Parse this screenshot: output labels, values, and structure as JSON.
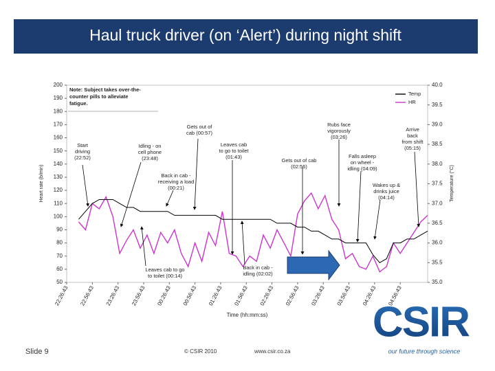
{
  "slide": {
    "title": "Haul truck driver (on ‘Alert’) during night shift",
    "slide_number": "Slide 9",
    "copyright": "© CSIR 2010",
    "website": "www.csir.co.za",
    "logo": "CSIR",
    "tagline": "our future through science"
  },
  "chart_data": {
    "type": "line",
    "x_label": "Time (hh:mm:ss)",
    "y_label": "Heart rate (b/min)",
    "y2_label": "Temperature (°C)",
    "note": [
      "Note: Subject takes over-the-",
      "counter pills to alleviate",
      "fatigue."
    ],
    "x": [
      14,
      22,
      30,
      38,
      46,
      54,
      62,
      70,
      78,
      86,
      94,
      102,
      110,
      118,
      126,
      134,
      142,
      150,
      158,
      166,
      174,
      182,
      190,
      198,
      206,
      214,
      222,
      230,
      238,
      246,
      254,
      262,
      270,
      278,
      286,
      294,
      302,
      310,
      318,
      326,
      334,
      342,
      350,
      358,
      366,
      374,
      382,
      390,
      398,
      406,
      414,
      422
    ],
    "xlim": [
      0,
      422
    ],
    "xticks": [
      {
        "value": 0,
        "label": "22:26:43"
      },
      {
        "value": 30,
        "label": "22:56:43"
      },
      {
        "value": 60,
        "label": "23:26:43"
      },
      {
        "value": 90,
        "label": "23:56:43"
      },
      {
        "value": 120,
        "label": "00:26:43"
      },
      {
        "value": 150,
        "label": "00:56:43"
      },
      {
        "value": 180,
        "label": "01:26:43"
      },
      {
        "value": 210,
        "label": "01:56:43"
      },
      {
        "value": 240,
        "label": "02:26:43"
      },
      {
        "value": 270,
        "label": "02:56:43"
      },
      {
        "value": 300,
        "label": "03:26:43"
      },
      {
        "value": 330,
        "label": "03:56:43"
      },
      {
        "value": 360,
        "label": "04:26:43"
      },
      {
        "value": 390,
        "label": "04:56:43"
      }
    ],
    "ylim": [
      50,
      200
    ],
    "yticks": [
      50,
      60,
      70,
      80,
      90,
      100,
      110,
      120,
      130,
      140,
      150,
      160,
      170,
      180,
      190,
      200
    ],
    "y2lim": [
      35,
      40
    ],
    "y2ticks": [
      {
        "value": 35,
        "label": "35.0"
      },
      35.5,
      {
        "value": 36,
        "label": "36.0"
      },
      36.5,
      {
        "value": 37,
        "label": "37.0"
      },
      37.5,
      {
        "value": 38,
        "label": "38.0"
      },
      38.5,
      {
        "value": 39,
        "label": "39.0"
      },
      39.5,
      {
        "value": 40,
        "label": "40.0"
      }
    ],
    "legend": "upper right",
    "series": [
      {
        "name": "Temp",
        "color": "#000000",
        "axis": "y2",
        "values": [
          36.6,
          36.8,
          37.0,
          37.1,
          37.1,
          37.1,
          37.0,
          36.9,
          36.9,
          36.8,
          36.8,
          36.8,
          36.8,
          36.8,
          36.7,
          36.7,
          36.7,
          36.7,
          36.7,
          36.7,
          36.7,
          36.6,
          36.6,
          36.6,
          36.6,
          36.6,
          36.6,
          36.6,
          36.6,
          36.5,
          36.5,
          36.5,
          36.4,
          36.4,
          36.3,
          36.3,
          36.2,
          36.1,
          36.1,
          36.0,
          36.0,
          36.0,
          36.0,
          35.7,
          35.5,
          35.6,
          36.0,
          36.0,
          36.1,
          36.1,
          36.2,
          36.3
        ]
      },
      {
        "name": "HR",
        "color": "#cc33cc",
        "values": [
          96,
          90,
          110,
          106,
          115,
          100,
          72,
          82,
          90,
          76,
          86,
          72,
          88,
          80,
          90,
          72,
          62,
          80,
          66,
          88,
          78,
          104,
          72,
          70,
          62,
          70,
          66,
          86,
          76,
          90,
          80,
          70,
          102,
          112,
          118,
          106,
          116,
          98,
          90,
          68,
          72,
          62,
          60,
          70,
          58,
          62,
          80,
          72,
          80,
          88,
          96,
          101
        ]
      }
    ],
    "annotations": [
      {
        "lines": [
          "Start",
          "driving",
          "(22:52)"
        ]
      },
      {
        "lines": [
          "Idling - on",
          "cell phone",
          "(23:48)"
        ]
      },
      {
        "lines": [
          "Gets out of",
          "cab (00:57)"
        ]
      },
      {
        "lines": [
          "Back in cab -",
          "receiving a load",
          "(00:21)"
        ]
      },
      {
        "lines": [
          "Leaves cab",
          "to go to toilet",
          "(01:43)"
        ]
      },
      {
        "lines": [
          "Leaves cab to go",
          "to toilet (00:14)"
        ]
      },
      {
        "lines": [
          "Back in cab -",
          "idling (02:02)"
        ]
      },
      {
        "lines": [
          "Rubs face",
          "vigorously",
          "(03:26)"
        ]
      },
      {
        "lines": [
          "Gets out of cab",
          "(02:56)"
        ]
      },
      {
        "lines": [
          "Falls asleep",
          "on wheel -",
          "idling (04:09)"
        ]
      },
      {
        "lines": [
          "Wakes up &",
          "drinks juice",
          "(04:14)"
        ]
      },
      {
        "lines": [
          "Arrive",
          "back",
          "from shift",
          "(05:15)"
        ]
      }
    ]
  }
}
